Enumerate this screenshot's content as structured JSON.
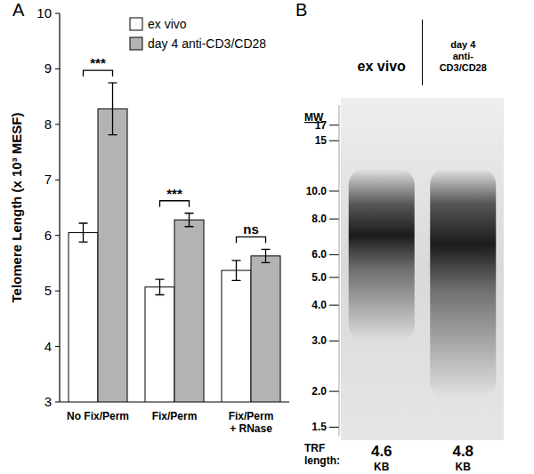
{
  "chart_data": [
    {
      "type": "bar",
      "panel": "A",
      "ylabel": "Telomere Length (x 10³ MESF)",
      "categories": [
        "No Fix/Perm",
        "Fix/Perm",
        "Fix/Perm\n+ RNase"
      ],
      "series": [
        {
          "name": "ex vivo",
          "color": "#ffffff",
          "values": [
            6.05,
            5.07,
            5.37
          ],
          "errors": [
            0.17,
            0.14,
            0.18
          ]
        },
        {
          "name": "day 4 anti-CD3/CD28",
          "color": "#b3b3b3",
          "values": [
            8.28,
            6.28,
            5.63
          ],
          "errors": [
            0.47,
            0.12,
            0.12
          ]
        }
      ],
      "annotations": [
        "***",
        "***",
        "ns"
      ],
      "ylim": [
        3,
        10
      ],
      "yticks": [
        3,
        4,
        5,
        6,
        7,
        8,
        9,
        10
      ],
      "legend": "top",
      "grid": false
    },
    {
      "type": "blot",
      "panel": "B",
      "ylabel": "MW",
      "categories": [
        "ex vivo",
        "day 4\nanti-\nCD3/CD28"
      ],
      "values": [
        4.6,
        4.8
      ],
      "value_title": "TRF\nlength:",
      "unit": "KB",
      "data_labels": true,
      "smear": [
        {
          "low": 3.0,
          "peak": 7.0,
          "high": 12.0
        },
        {
          "low": 1.9,
          "peak": 6.5,
          "high": 12.0
        }
      ],
      "log": "y",
      "ylim": [
        1.4,
        20
      ],
      "yticks": [
        17,
        15,
        {
          "value": 10,
          "label": "10.0"
        },
        {
          "value": 8,
          "label": "8.0"
        },
        {
          "value": 6,
          "label": "6.0"
        },
        {
          "value": 5,
          "label": "5.0"
        },
        {
          "value": 4,
          "label": "4.0"
        },
        {
          "value": 3,
          "label": "3.0"
        },
        {
          "value": 2,
          "label": "2.0"
        },
        1.5
      ]
    }
  ]
}
